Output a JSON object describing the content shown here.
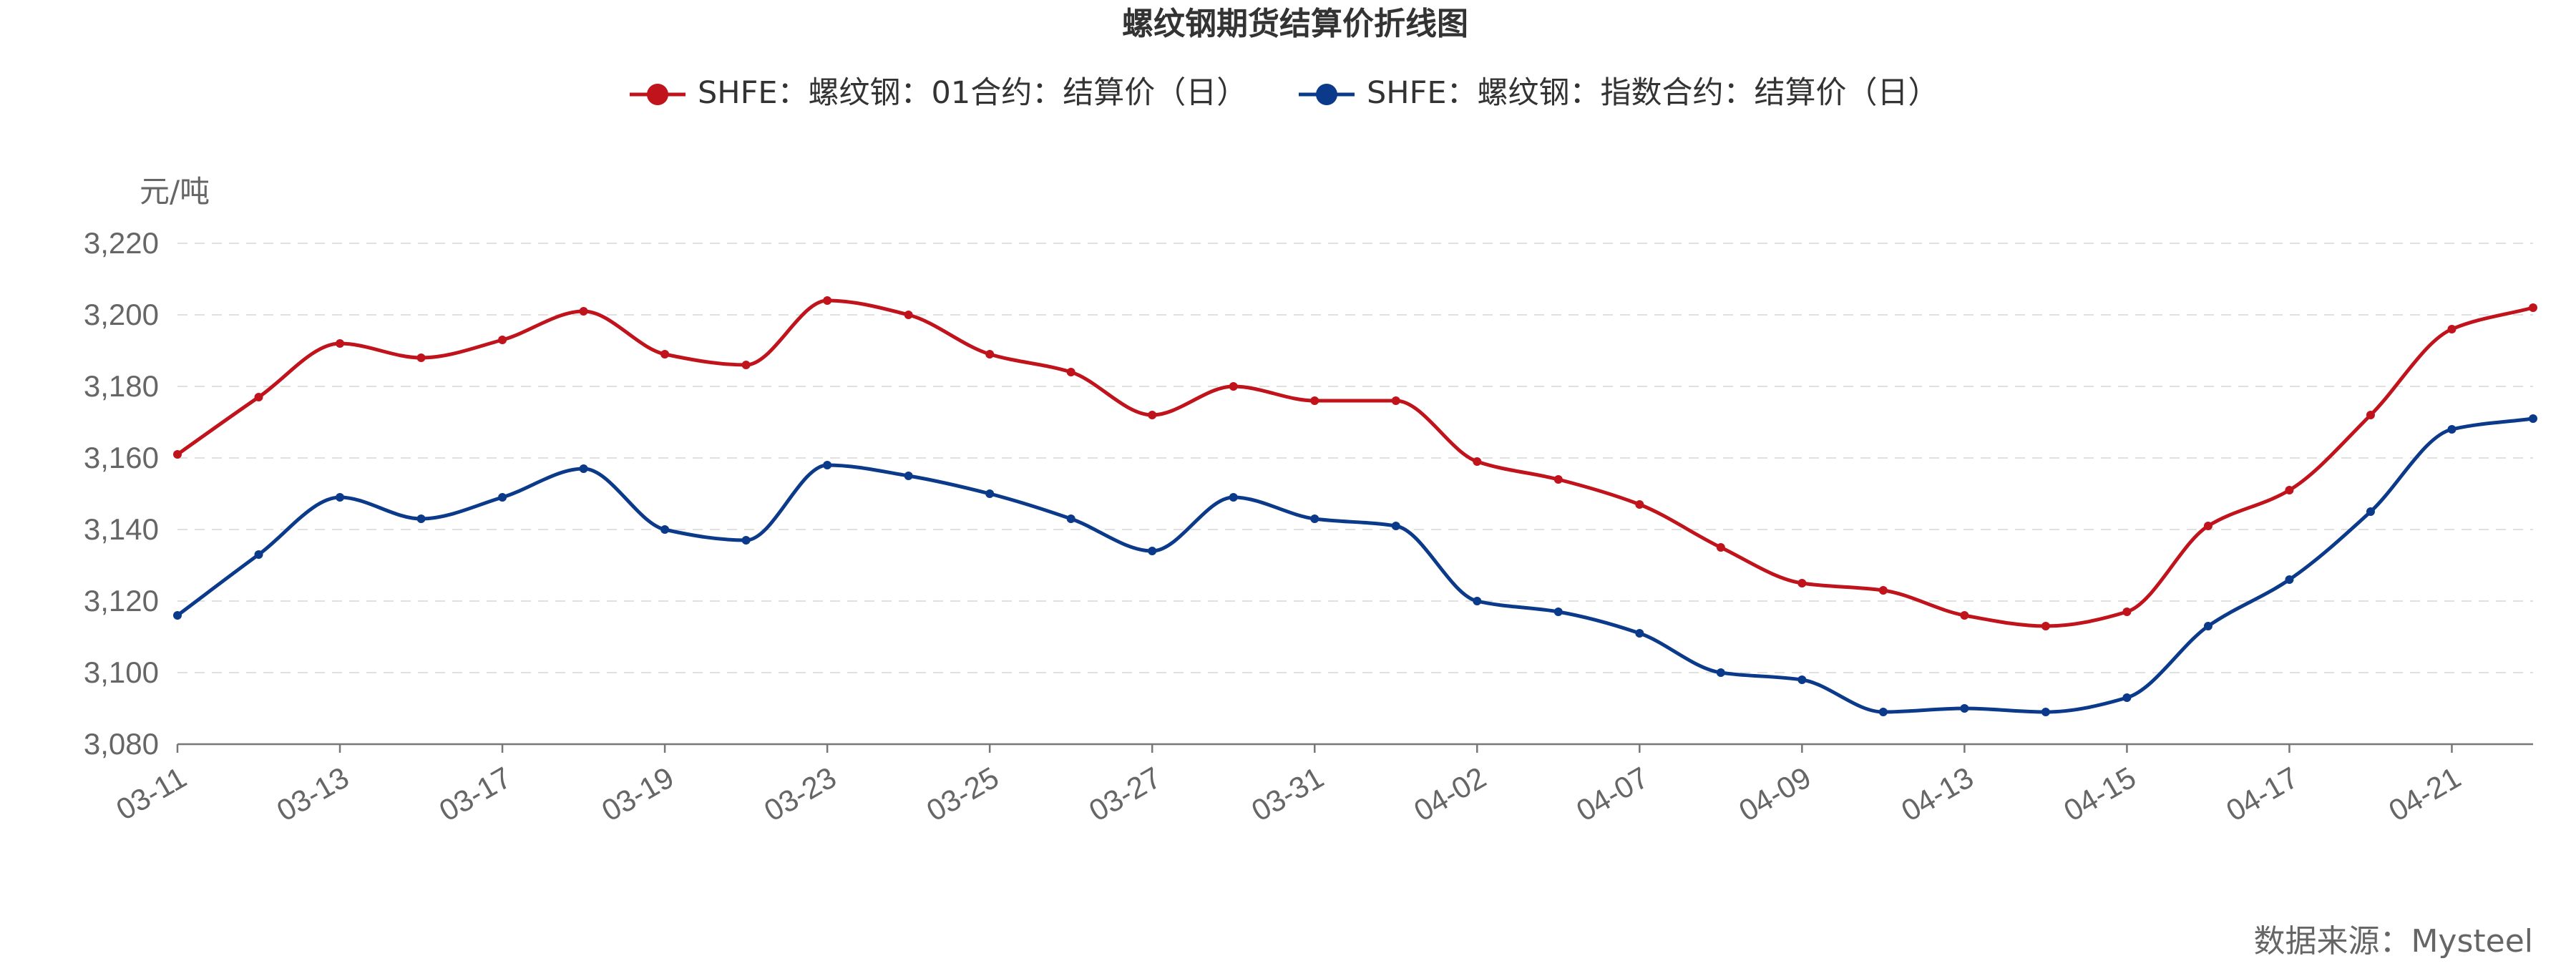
{
  "chart_data": {
    "type": "line",
    "title": "螺纹钢期货结算价折线图",
    "y_unit": "元/吨",
    "source": "数据来源：Mysteel",
    "ylim": [
      3080,
      3220
    ],
    "yticks": [
      "3,080",
      "3,100",
      "3,120",
      "3,140",
      "3,160",
      "3,180",
      "3,200",
      "3,220"
    ],
    "y_grid": true,
    "legend_position": "top-center",
    "x": [
      "03-11",
      "03-12",
      "03-13",
      "03-14",
      "03-17",
      "03-18",
      "03-19",
      "03-20",
      "03-23",
      "03-24",
      "03-25",
      "03-26",
      "03-27",
      "03-30",
      "03-31",
      "04-01",
      "04-02",
      "04-03",
      "04-07",
      "04-08",
      "04-09",
      "04-10",
      "04-13",
      "04-14",
      "04-15",
      "04-16",
      "04-17",
      "04-20",
      "04-21",
      "04-22"
    ],
    "x_tick_labels": [
      "03-11",
      "03-13",
      "03-17",
      "03-19",
      "03-23",
      "03-25",
      "03-27",
      "03-31",
      "04-02",
      "04-07",
      "04-09",
      "04-13",
      "04-15",
      "04-17",
      "04-21"
    ],
    "series": [
      {
        "name": "SHFE：螺纹钢：01合约：结算价（日）",
        "color": "#c0131c",
        "values": [
          3161,
          3177,
          3192,
          3188,
          3193,
          3201,
          3189,
          3186,
          3204,
          3200,
          3189,
          3184,
          3172,
          3180,
          3176,
          3176,
          3159,
          3154,
          3147,
          3135,
          3125,
          3123,
          3116,
          3113,
          3117,
          3141,
          3151,
          3172,
          3196,
          3202
        ]
      },
      {
        "name": "SHFE：螺纹钢：指数合约：结算价（日）",
        "color": "#0b3a8a",
        "values": [
          3116,
          3133,
          3149,
          3143,
          3149,
          3157,
          3140,
          3137,
          3158,
          3155,
          3150,
          3143,
          3134,
          3149,
          3143,
          3141,
          3120,
          3117,
          3111,
          3100,
          3098,
          3089,
          3090,
          3089,
          3093,
          3113,
          3126,
          3145,
          3168,
          3171
        ]
      }
    ]
  }
}
